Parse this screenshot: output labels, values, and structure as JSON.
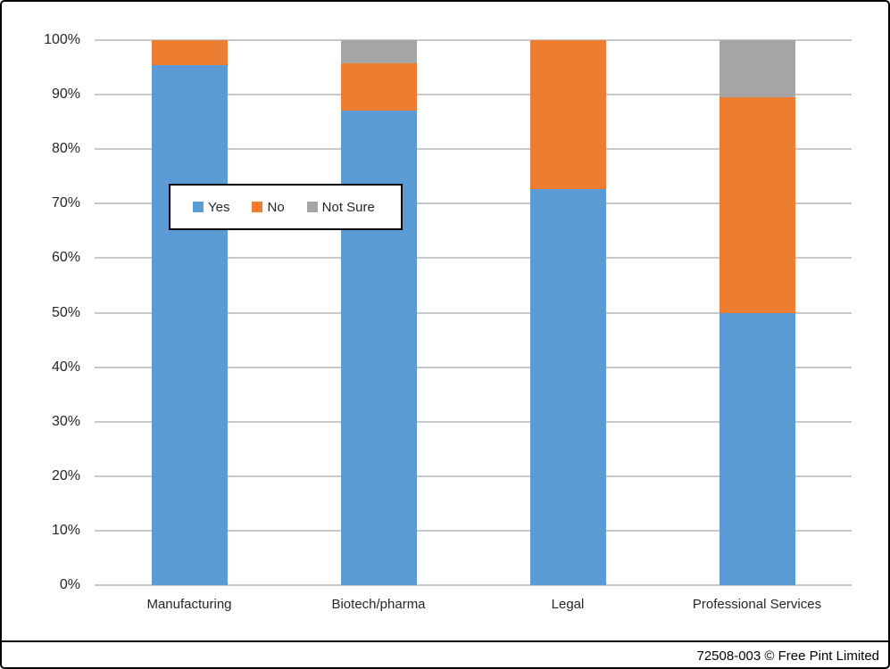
{
  "chart_data": {
    "type": "bar",
    "stacked": true,
    "percent_stacked": true,
    "title": "",
    "xlabel": "",
    "ylabel": "",
    "categories": [
      "Manufacturing",
      "Biotech/pharma",
      "Legal",
      "Professional Services"
    ],
    "series": [
      {
        "name": "Yes",
        "color": "#5B9BD5",
        "values": [
          95.5,
          87.0,
          72.7,
          50.0
        ]
      },
      {
        "name": "No",
        "color": "#ED7D31",
        "values": [
          4.5,
          8.7,
          27.3,
          39.5
        ]
      },
      {
        "name": "Not Sure",
        "color": "#A5A5A5",
        "values": [
          0,
          4.3,
          0,
          10.5
        ]
      }
    ],
    "ylim": [
      0,
      100
    ],
    "ytick_step": 10,
    "ytick_labels": [
      "0%",
      "10%",
      "20%",
      "30%",
      "40%",
      "50%",
      "60%",
      "70%",
      "80%",
      "90%",
      "100%"
    ],
    "grid": true,
    "gridline_color": "#C8C8C8",
    "legend_position": "inside-upper-left",
    "legend_entries": [
      "Yes",
      "No",
      "Not Sure"
    ]
  },
  "footer": {
    "credit": "72508-003 © Free Pint Limited"
  },
  "colors": {
    "background": "#FFFFFF",
    "border": "#000000",
    "axis_text": "#262626"
  }
}
